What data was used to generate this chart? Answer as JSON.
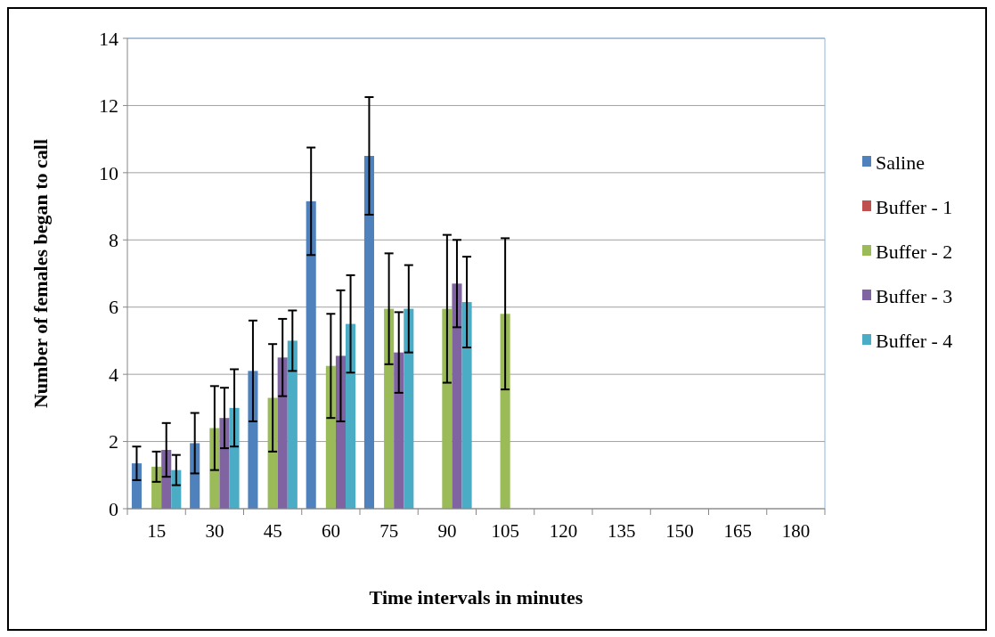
{
  "chart_data": {
    "type": "bar",
    "xlabel": "Time intervals in minutes",
    "ylabel": "Number of females began to call",
    "categories": [
      "15",
      "30",
      "45",
      "60",
      "75",
      "90",
      "105",
      "120",
      "135",
      "150",
      "165",
      "180"
    ],
    "series": [
      {
        "name": "Saline",
        "color": "#4f81bd",
        "values": [
          1.35,
          1.95,
          4.1,
          9.15,
          10.5,
          null,
          null,
          null,
          null,
          null,
          null,
          null
        ],
        "errors": [
          0.5,
          0.9,
          1.5,
          1.6,
          1.75,
          null,
          null,
          null,
          null,
          null,
          null,
          null
        ]
      },
      {
        "name": "Buffer - 1",
        "color": "#c0504d",
        "values": [
          null,
          null,
          null,
          null,
          null,
          null,
          null,
          null,
          null,
          null,
          null,
          null
        ]
      },
      {
        "name": "Buffer - 2",
        "color": "#9bbb59",
        "values": [
          1.25,
          2.4,
          3.3,
          4.25,
          5.95,
          5.95,
          5.8,
          null,
          null,
          null,
          null,
          null
        ],
        "errors": [
          0.45,
          1.25,
          1.6,
          1.55,
          1.65,
          2.2,
          2.25,
          null,
          null,
          null,
          null,
          null
        ]
      },
      {
        "name": "Buffer - 3",
        "color": "#8064a2",
        "values": [
          1.75,
          2.7,
          4.5,
          4.55,
          4.65,
          6.7,
          null,
          null,
          null,
          null,
          null,
          null
        ],
        "errors": [
          0.8,
          0.9,
          1.15,
          1.95,
          1.2,
          1.3,
          null,
          null,
          null,
          null,
          null,
          null
        ]
      },
      {
        "name": "Buffer - 4",
        "color": "#4bacc6",
        "values": [
          1.15,
          3.0,
          5.0,
          5.5,
          5.95,
          6.15,
          null,
          null,
          null,
          null,
          null,
          null
        ],
        "errors": [
          0.45,
          1.15,
          0.9,
          1.45,
          1.3,
          1.35,
          null,
          null,
          null,
          null,
          null,
          null
        ]
      }
    ],
    "ylim": [
      0,
      14
    ],
    "yticks": [
      0,
      2,
      4,
      6,
      8,
      10,
      12,
      14
    ],
    "grid": "y",
    "legend": "right"
  }
}
